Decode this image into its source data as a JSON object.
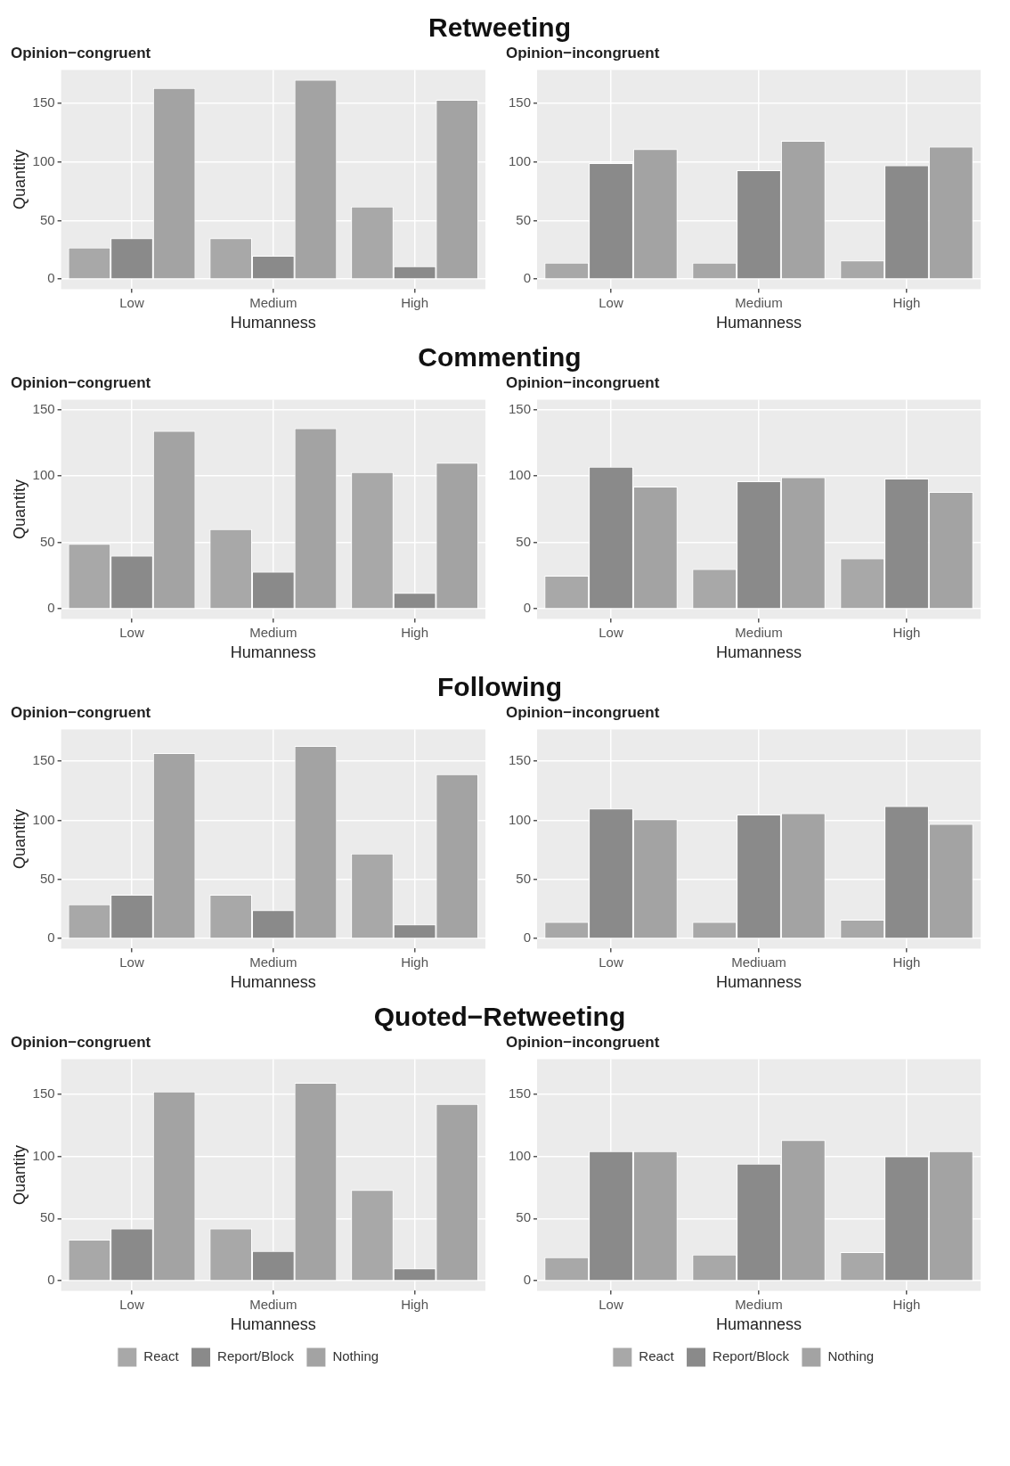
{
  "chart_data": [
    {
      "type": "bar",
      "title": "Retweeting",
      "subtitle": "Opinion−congruent",
      "xlabel": "Humanness",
      "ylabel": "Quantity",
      "categories": [
        "Low",
        "Medium",
        "High"
      ],
      "ylim": [
        -8.5,
        178.5
      ],
      "yticks": [
        0,
        50,
        100,
        150
      ],
      "grid": true,
      "series": [
        {
          "color": "#a8a8a8",
          "values": [
            27,
            35,
            62
          ]
        },
        {
          "color": "#8a8a8a",
          "values": [
            35,
            20,
            11
          ]
        },
        {
          "color": "#a3a3a3",
          "values": [
            163,
            170,
            153
          ]
        }
      ]
    },
    {
      "type": "bar",
      "subtitle": "Opinion−incongruent",
      "xlabel": "Humanness",
      "categories": [
        "Low",
        "Medium",
        "High"
      ],
      "ylim": [
        -8.5,
        178.5
      ],
      "yticks": [
        0,
        50,
        100,
        150
      ],
      "grid": true,
      "series": [
        {
          "color": "#a8a8a8",
          "values": [
            14,
            14,
            16
          ]
        },
        {
          "color": "#8a8a8a",
          "values": [
            99,
            93,
            97
          ]
        },
        {
          "color": "#a3a3a3",
          "values": [
            111,
            118,
            113
          ]
        }
      ]
    },
    {
      "type": "bar",
      "title": "Commenting",
      "subtitle": "Opinion−congruent",
      "xlabel": "Humanness",
      "ylabel": "Quantity",
      "categories": [
        "Low",
        "Medium",
        "High"
      ],
      "ylim": [
        -7.5,
        157.5
      ],
      "yticks": [
        0,
        50,
        100,
        150
      ],
      "grid": true,
      "series": [
        {
          "color": "#a8a8a8",
          "values": [
            49,
            60,
            103
          ]
        },
        {
          "color": "#8a8a8a",
          "values": [
            40,
            28,
            12
          ]
        },
        {
          "color": "#a3a3a3",
          "values": [
            134,
            136,
            110
          ]
        }
      ]
    },
    {
      "type": "bar",
      "subtitle": "Opinion−incongruent",
      "xlabel": "Humanness",
      "categories": [
        "Low",
        "Medium",
        "High"
      ],
      "ylim": [
        -7.5,
        157.5
      ],
      "yticks": [
        0,
        50,
        100,
        150
      ],
      "grid": true,
      "series": [
        {
          "color": "#a8a8a8",
          "values": [
            25,
            30,
            38
          ]
        },
        {
          "color": "#8a8a8a",
          "values": [
            107,
            96,
            98
          ]
        },
        {
          "color": "#a3a3a3",
          "values": [
            92,
            99,
            88
          ]
        }
      ]
    },
    {
      "type": "bar",
      "title": "Following",
      "subtitle": "Opinion−congruent",
      "xlabel": "Humanness",
      "ylabel": "Quantity",
      "categories": [
        "Low",
        "Medium",
        "High"
      ],
      "ylim": [
        -8.5,
        177
      ],
      "yticks": [
        0,
        50,
        100,
        150
      ],
      "grid": true,
      "series": [
        {
          "color": "#a8a8a8",
          "values": [
            29,
            37,
            72
          ]
        },
        {
          "color": "#8a8a8a",
          "values": [
            37,
            24,
            12
          ]
        },
        {
          "color": "#a3a3a3",
          "values": [
            157,
            163,
            139
          ]
        }
      ]
    },
    {
      "type": "bar",
      "subtitle": "Opinion−incongruent",
      "xlabel": "Humanness",
      "categories": [
        "Low",
        "Mediuam",
        "High"
      ],
      "ylim": [
        -8.5,
        177
      ],
      "yticks": [
        0,
        50,
        100,
        150
      ],
      "grid": true,
      "series": [
        {
          "color": "#a8a8a8",
          "values": [
            14,
            14,
            16
          ]
        },
        {
          "color": "#8a8a8a",
          "values": [
            110,
            105,
            112
          ]
        },
        {
          "color": "#a3a3a3",
          "values": [
            101,
            106,
            97
          ]
        }
      ]
    },
    {
      "type": "bar",
      "title": "Quoted−Retweeting",
      "subtitle": "Opinion−congruent",
      "xlabel": "Humanness",
      "ylabel": "Quantity",
      "categories": [
        "Low",
        "Medium",
        "High"
      ],
      "ylim": [
        -8,
        178
      ],
      "yticks": [
        0,
        50,
        100,
        150
      ],
      "grid": true,
      "legend": "bottom",
      "series": [
        {
          "name": "React",
          "color": "#a8a8a8",
          "values": [
            33,
            42,
            73
          ]
        },
        {
          "name": "Report/Block",
          "color": "#8a8a8a",
          "values": [
            42,
            24,
            10
          ]
        },
        {
          "name": "Nothing",
          "color": "#a3a3a3",
          "values": [
            152,
            159,
            142
          ]
        }
      ]
    },
    {
      "type": "bar",
      "subtitle": "Opinion−incongruent",
      "xlabel": "Humanness",
      "categories": [
        "Low",
        "Medium",
        "High"
      ],
      "ylim": [
        -8,
        178
      ],
      "yticks": [
        0,
        50,
        100,
        150
      ],
      "grid": true,
      "legend": "bottom",
      "series": [
        {
          "name": "React",
          "color": "#a8a8a8",
          "values": [
            19,
            21,
            23
          ]
        },
        {
          "name": "Report/Block",
          "color": "#8a8a8a",
          "values": [
            104,
            94,
            100
          ]
        },
        {
          "name": "Nothing",
          "color": "#a3a3a3",
          "values": [
            104,
            113,
            104
          ]
        }
      ]
    }
  ]
}
